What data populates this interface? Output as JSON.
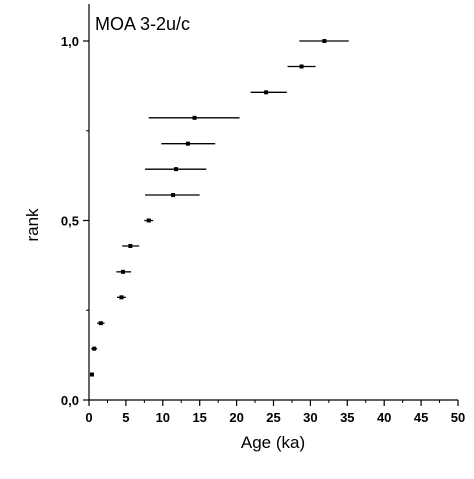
{
  "chart_data": {
    "type": "scatter",
    "title": "MOA 3-2u/c",
    "xlabel": "Age (ka)",
    "ylabel": "rank",
    "xlim": [
      0,
      50
    ],
    "ylim": [
      0,
      1.1
    ],
    "x_ticks": [
      "0",
      "5",
      "10",
      "15",
      "20",
      "25",
      "30",
      "35",
      "40",
      "45",
      "50"
    ],
    "y_ticks": [
      "0,0",
      "0,5",
      "1,0"
    ],
    "grid": false,
    "points": [
      {
        "x": 0.4,
        "y": 0.071,
        "xerr": [
          0.3,
          0.5
        ]
      },
      {
        "x": 0.7,
        "y": 0.143,
        "xerr": [
          0.3,
          1.1
        ]
      },
      {
        "x": 1.6,
        "y": 0.214,
        "xerr": [
          1.1,
          2.1
        ]
      },
      {
        "x": 4.4,
        "y": 0.286,
        "xerr": [
          3.8,
          5.0
        ]
      },
      {
        "x": 4.6,
        "y": 0.357,
        "xerr": [
          3.7,
          5.7
        ]
      },
      {
        "x": 5.6,
        "y": 0.429,
        "xerr": [
          4.5,
          6.8
        ]
      },
      {
        "x": 8.1,
        "y": 0.5,
        "xerr": [
          7.5,
          8.7
        ]
      },
      {
        "x": 11.4,
        "y": 0.571,
        "xerr": [
          7.6,
          15.0
        ]
      },
      {
        "x": 11.8,
        "y": 0.643,
        "xerr": [
          7.6,
          15.9
        ]
      },
      {
        "x": 13.4,
        "y": 0.714,
        "xerr": [
          9.8,
          17.1
        ]
      },
      {
        "x": 14.3,
        "y": 0.786,
        "xerr": [
          8.1,
          20.4
        ]
      },
      {
        "x": 24.0,
        "y": 0.857,
        "xerr": [
          21.9,
          26.8
        ]
      },
      {
        "x": 28.8,
        "y": 0.929,
        "xerr": [
          26.9,
          30.7
        ]
      },
      {
        "x": 31.9,
        "y": 1.0,
        "xerr": [
          28.5,
          35.2
        ]
      }
    ]
  }
}
